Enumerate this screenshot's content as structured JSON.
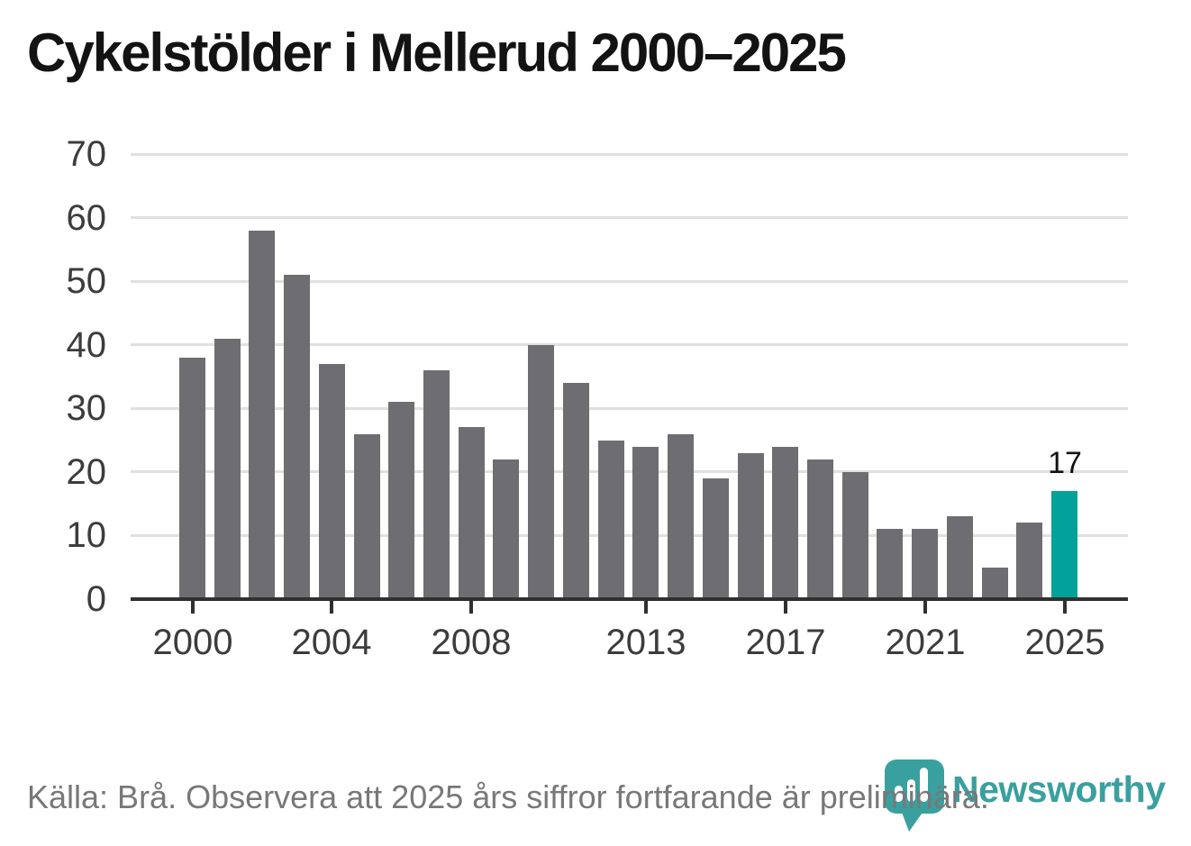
{
  "title": "Cykelstölder i Mellerud 2000–2025",
  "footer": {
    "source_note": "Källa: Brå. Observera att 2025 års siffror fortfarande är preliminära."
  },
  "branding": {
    "name": "Newsworthy",
    "logo_icon": "speech-bubble-bar-chart-icon"
  },
  "colors": {
    "bar": "#6d6d72",
    "highlight_bar": "#02a29a",
    "gridline": "#e0e0e0",
    "axis": "#303030",
    "axis_label": "#3c3c3c",
    "title": "#131313",
    "footer": "#787878",
    "brand": "#3aa09f"
  },
  "chart_data": {
    "type": "bar",
    "title": "Cykelstölder i Mellerud 2000–2025",
    "years": [
      2000,
      2001,
      2002,
      2003,
      2004,
      2005,
      2006,
      2007,
      2008,
      2009,
      2010,
      2011,
      2012,
      2013,
      2014,
      2015,
      2016,
      2017,
      2018,
      2019,
      2020,
      2021,
      2022,
      2023,
      2024,
      2025
    ],
    "values": [
      38,
      41,
      58,
      51,
      37,
      26,
      31,
      36,
      27,
      22,
      40,
      34,
      25,
      24,
      26,
      19,
      23,
      24,
      22,
      20,
      11,
      11,
      13,
      5,
      12,
      17
    ],
    "highlight_year": 2025,
    "data_label": {
      "year": 2025,
      "text": "17"
    },
    "x_tick_labels": [
      "2000",
      "2004",
      "2008",
      "2013",
      "2017",
      "2021",
      "2025"
    ],
    "y_ticks": [
      0,
      10,
      20,
      30,
      40,
      50,
      60,
      70
    ],
    "ylim": [
      0,
      70
    ],
    "grid": "horizontal",
    "legend": "none"
  }
}
